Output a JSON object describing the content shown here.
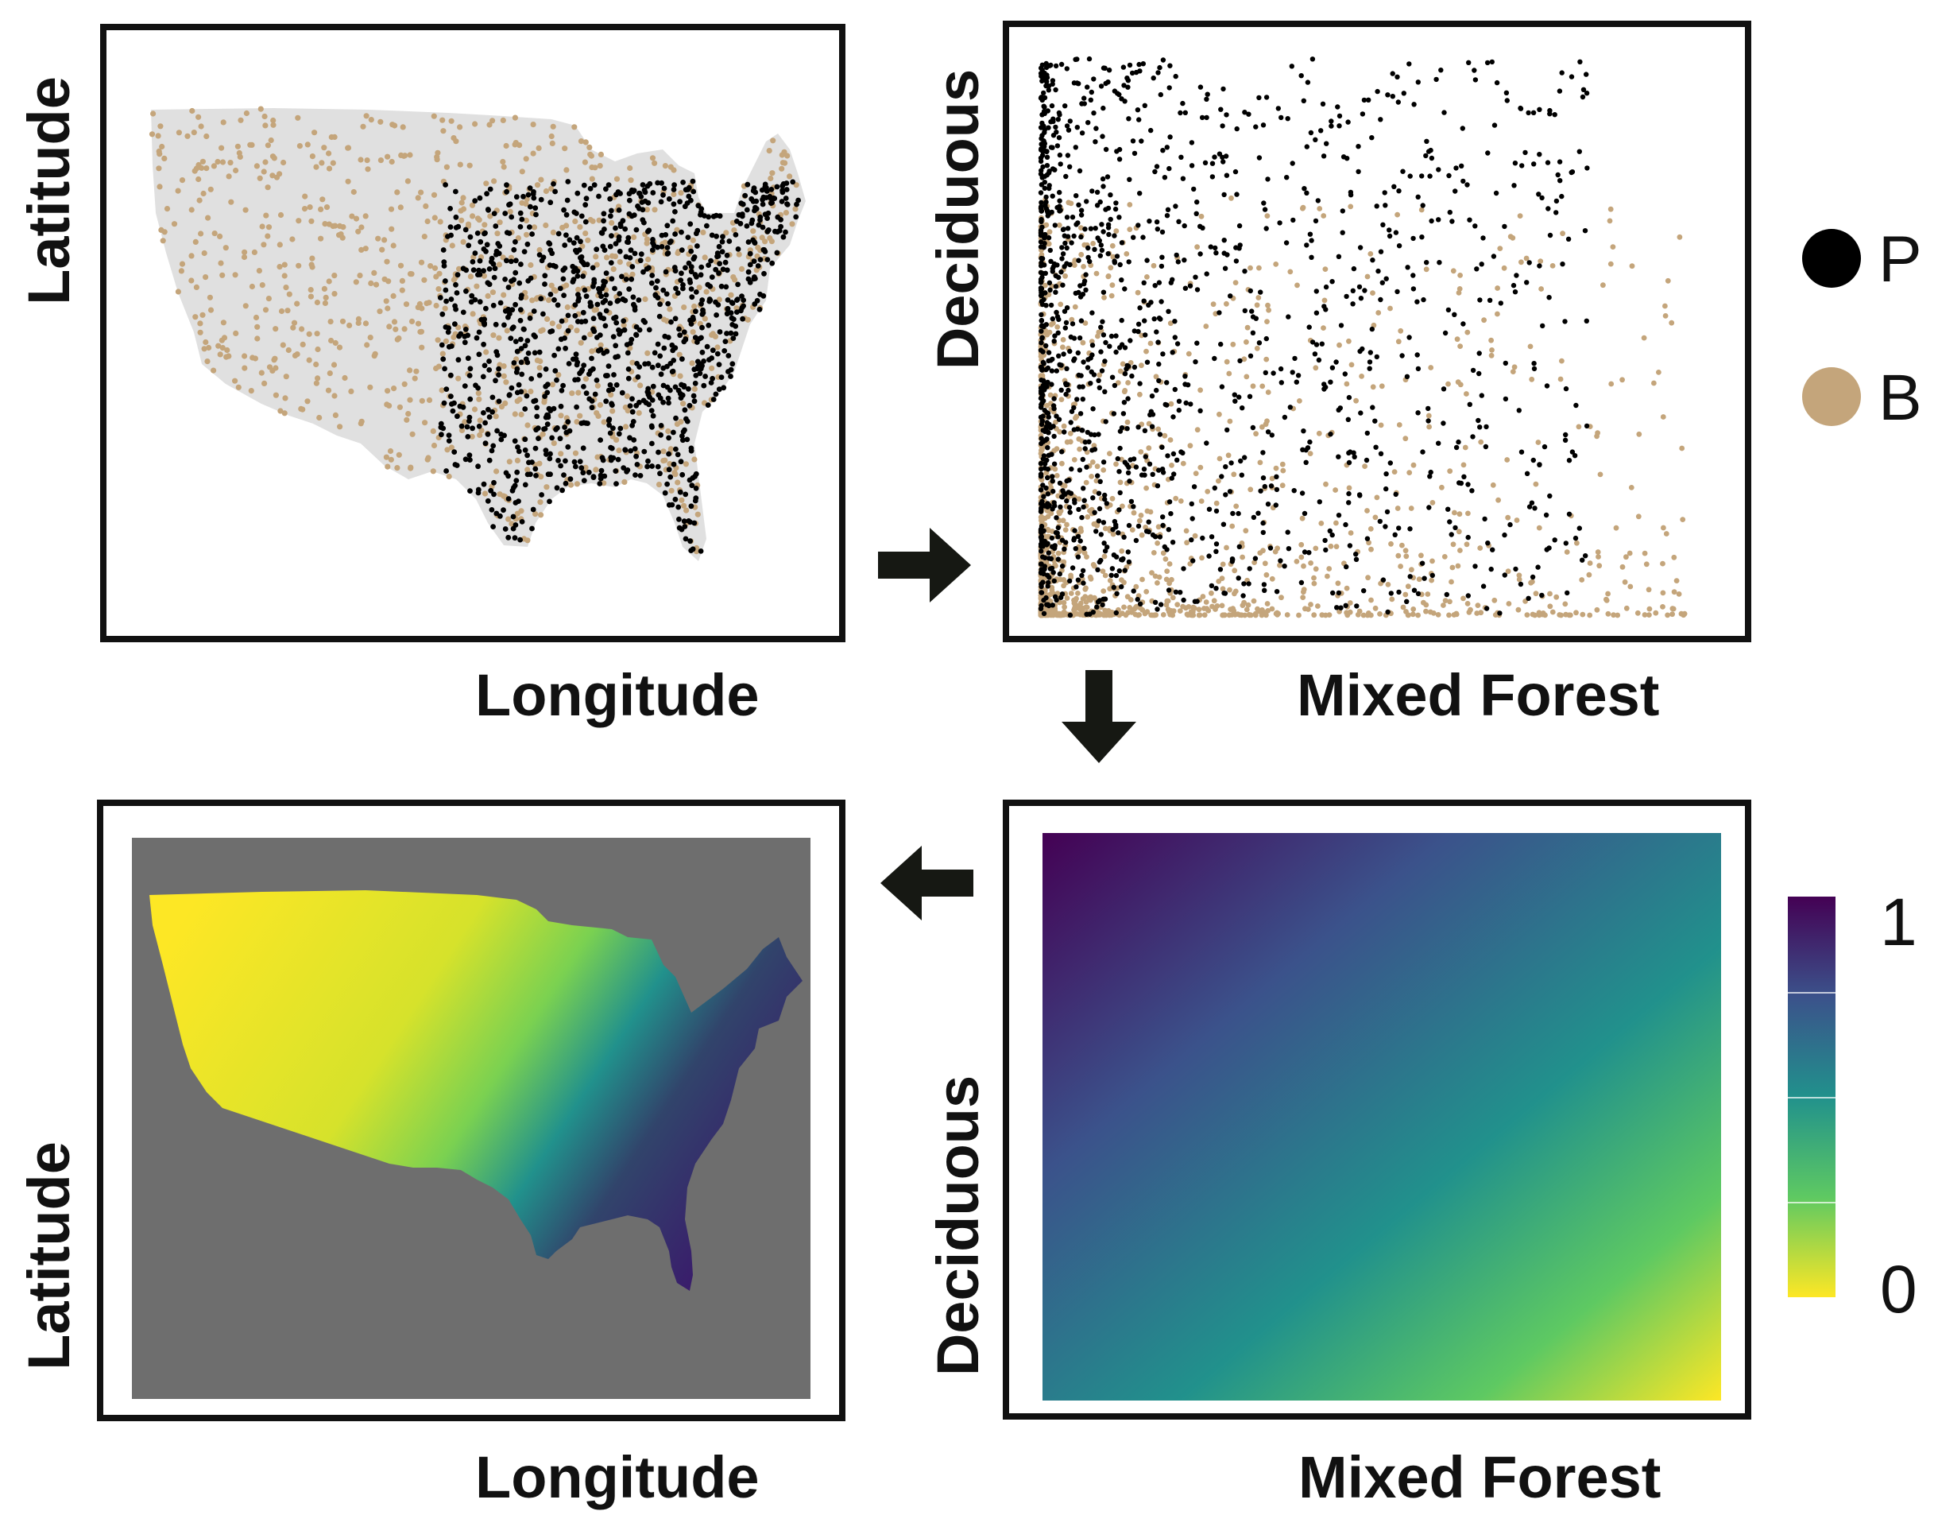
{
  "panels": {
    "map_points": {
      "xlabel": "Longitude",
      "ylabel": "Latitude"
    },
    "scatter": {
      "xlabel": "Mixed Forest",
      "ylabel": "Deciduous"
    },
    "surface": {
      "xlabel": "Mixed Forest",
      "ylabel": "Deciduous"
    },
    "map_prediction": {
      "xlabel": "Longitude",
      "ylabel": "Latitude"
    }
  },
  "legend_points": [
    {
      "label": "P",
      "color": "#000000"
    },
    {
      "label": "B",
      "color": "#c4a57b"
    }
  ],
  "colorbar": {
    "max_label": "1",
    "min_label": "0",
    "colors": [
      "#440154",
      "#3b528b",
      "#21918c",
      "#5ec962",
      "#fde725"
    ]
  },
  "colors": {
    "presence": "#000000",
    "background": "#c4a57b",
    "land": "#e0e0e0",
    "ocean_raster": "#6e6e6e"
  },
  "arrows": [
    "right-arrow-icon",
    "down-arrow-icon",
    "left-arrow-icon"
  ]
}
